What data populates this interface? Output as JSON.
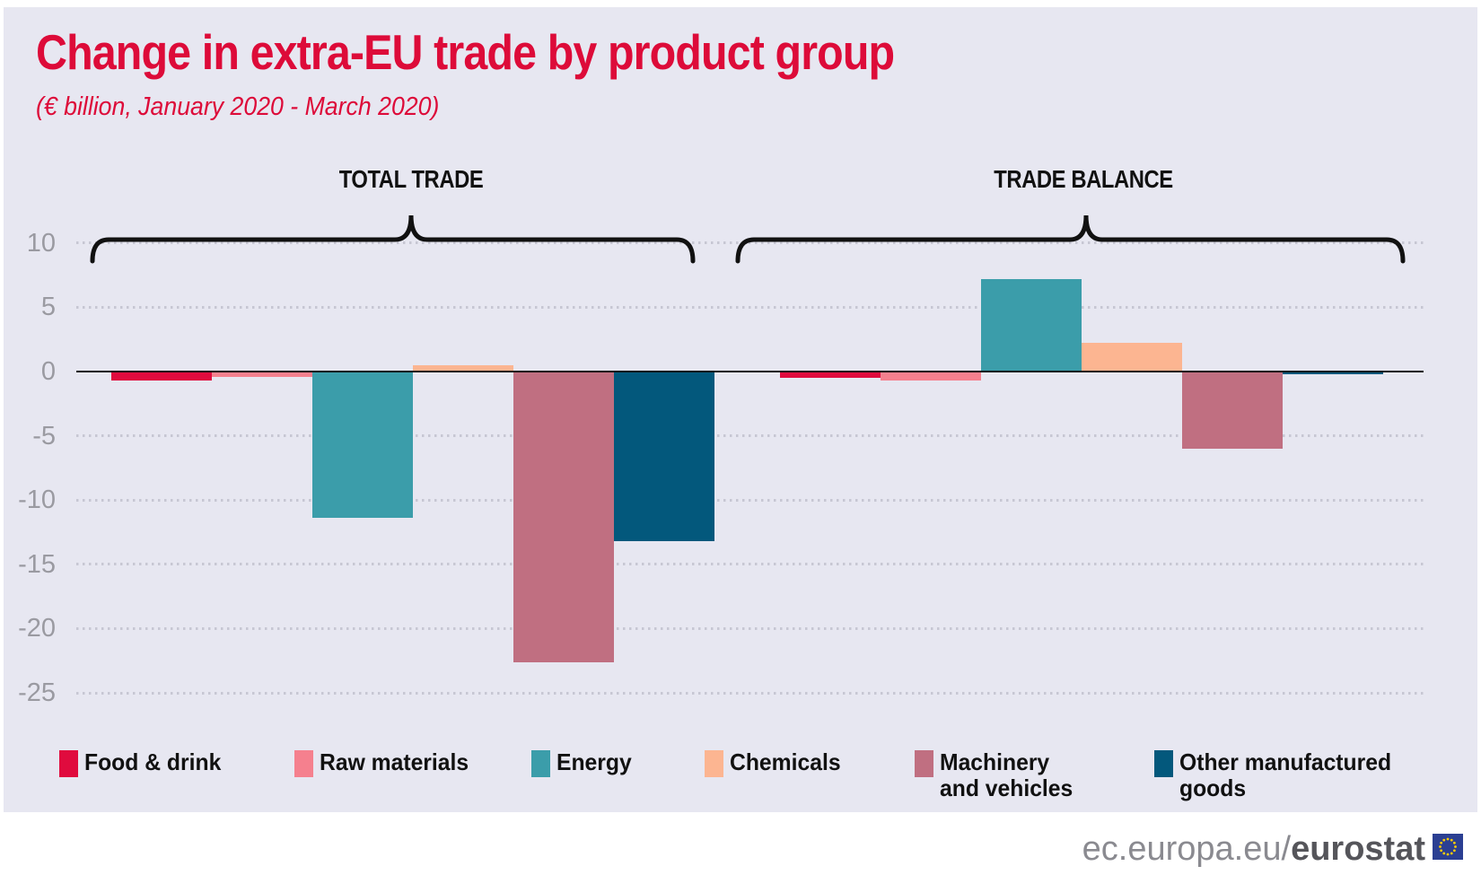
{
  "page": {
    "panel_background": "#e7e7f1",
    "accent_red": "#dd0b39"
  },
  "header": {
    "title": "Change in extra-EU trade by product group",
    "subtitle": "(€ billion, January 2020 - March 2020)"
  },
  "group_labels": [
    "TOTAL TRADE",
    "TRADE BALANCE"
  ],
  "axis": {
    "ticks": [
      10,
      5,
      0,
      -5,
      -10,
      -15,
      -20,
      -25
    ]
  },
  "legend": [
    {
      "label": "Food & drink",
      "color": "#e00b3e"
    },
    {
      "label": "Raw materials",
      "color": "#f5808e"
    },
    {
      "label": "Energy",
      "color": "#3b9daa"
    },
    {
      "label": "Chemicals",
      "color": "#fcb591"
    },
    {
      "label": "Machinery\nand vehicles",
      "color": "#c06f81"
    },
    {
      "label": "Other manufactured\ngoods",
      "color": "#03587c"
    }
  ],
  "footer": {
    "site": "ec.europa.eu/",
    "brand": "eurostat",
    "flag": "eu-flag-icon"
  },
  "chart_data": {
    "type": "bar",
    "title": "Change in extra-EU trade by product group",
    "subtitle": "(€ billion, January 2020 - March 2020)",
    "unit": "EUR billion",
    "categories": [
      "Food & drink",
      "Raw materials",
      "Energy",
      "Chemicals",
      "Machinery and vehicles",
      "Other manufactured goods"
    ],
    "series": [
      {
        "name": "TOTAL TRADE",
        "values": [
          -0.7,
          -0.4,
          -11.4,
          0.5,
          -22.6,
          -13.2
        ]
      },
      {
        "name": "TRADE BALANCE",
        "values": [
          -0.5,
          -0.7,
          7.2,
          2.2,
          -6,
          -0.2
        ]
      }
    ],
    "ylim": [
      -25,
      10
    ],
    "y_ticks": [
      10,
      5,
      0,
      -5,
      -10,
      -15,
      -20,
      -25
    ],
    "grid": "horizontal dotted",
    "legend_position": "bottom"
  }
}
